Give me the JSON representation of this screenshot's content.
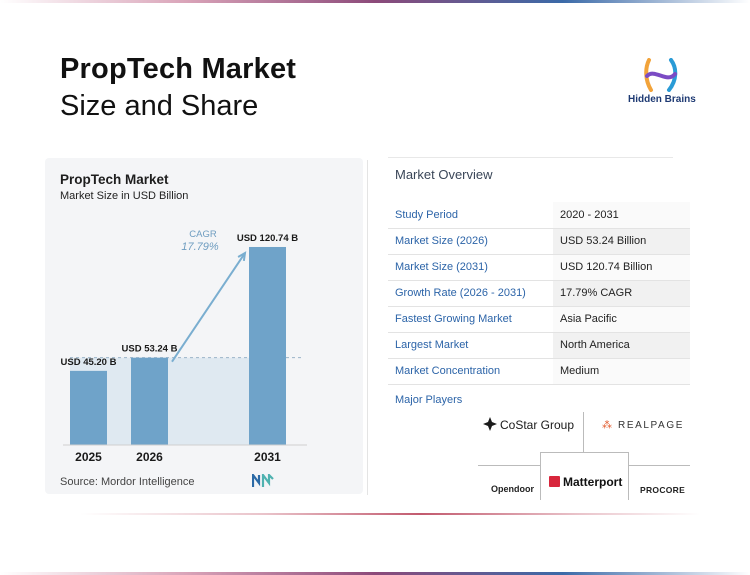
{
  "header": {
    "title": "PropTech Market",
    "subtitle": "Size and Share"
  },
  "logo": {
    "text": "Hidden Brains",
    "colors": [
      "#f2a33a",
      "#7b4bc4",
      "#2a9bd6"
    ]
  },
  "chart_data": {
    "type": "bar",
    "title": "PropTech Market",
    "subtitle": "Market Size in USD Billion",
    "categories": [
      "2025",
      "2026",
      "2031"
    ],
    "values": [
      45.2,
      53.24,
      120.74
    ],
    "data_labels": [
      "USD 45.20 B",
      "USD 53.24 B",
      "USD 120.74 B"
    ],
    "ylim": [
      0,
      125
    ],
    "xlabel": "",
    "ylabel": "",
    "grid": false,
    "cagr_label": "CAGR",
    "cagr_value": "17.79%",
    "reference_line_value": 53.24,
    "source": "Source: Mordor Intelligence",
    "colors": {
      "bar": "#6fa3c9",
      "band": "#dfe9f1",
      "arrow": "#7aaed0"
    }
  },
  "overview": {
    "title": "Market Overview",
    "rows": [
      {
        "key": "Study Period",
        "value": "2020 - 2031"
      },
      {
        "key": "Market Size (2026)",
        "value": "USD 53.24 Billion"
      },
      {
        "key": "Market Size (2031)",
        "value": "USD 120.74 Billion"
      },
      {
        "key": "Growth Rate (2026 - 2031)",
        "value": "17.79% CAGR"
      },
      {
        "key": "Fastest Growing Market",
        "value": "Asia Pacific"
      },
      {
        "key": "Largest Market",
        "value": "North America"
      },
      {
        "key": "Market Concentration",
        "value": "Medium"
      }
    ]
  },
  "players": {
    "title": "Major Players",
    "costar": "CoStar Group",
    "realpage": "REALPAGE",
    "opendoor": "Opendoor",
    "matterport": "Matterport",
    "procore": "PROCORE"
  }
}
